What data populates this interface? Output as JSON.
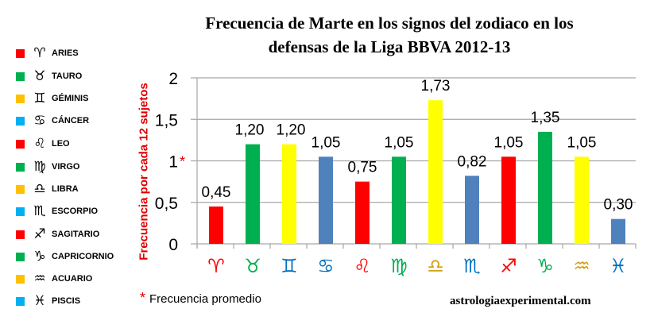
{
  "title_line1": "Frecuencia de Marte en los signos del zodiaco en los",
  "title_line2": "defensas de la Liga BBVA 2012-13",
  "ylabel": "Frecuencia por cada 12 sujetos",
  "footnote_star": "*",
  "footnote": "Frecuencia promedio",
  "source": "astrologiaexperimental.com",
  "legend": [
    {
      "glyph": "♈",
      "label": "ARIES",
      "color": "#ff0000"
    },
    {
      "glyph": "♉",
      "label": "TAURO",
      "color": "#00b050"
    },
    {
      "glyph": "♊",
      "label": "GÉMINIS",
      "color": "#ffc000"
    },
    {
      "glyph": "♋",
      "label": "CÁNCER",
      "color": "#00b0f0"
    },
    {
      "glyph": "♌",
      "label": "LEO",
      "color": "#ff0000"
    },
    {
      "glyph": "♍",
      "label": "VIRGO",
      "color": "#00b050"
    },
    {
      "glyph": "♎",
      "label": "LIBRA",
      "color": "#ffc000"
    },
    {
      "glyph": "♏",
      "label": "ESCORPIO",
      "color": "#00b0f0"
    },
    {
      "glyph": "♐",
      "label": "SAGITARIO",
      "color": "#ff0000"
    },
    {
      "glyph": "♑",
      "label": "CAPRICORNIO",
      "color": "#00b050"
    },
    {
      "glyph": "♒",
      "label": "ACUARIO",
      "color": "#ffc000"
    },
    {
      "glyph": "♓",
      "label": "PISCIS",
      "color": "#00b0f0"
    }
  ],
  "chart_data": {
    "type": "bar",
    "title": "Frecuencia de Marte en los signos del zodiaco en los defensas de la Liga BBVA 2012-13",
    "xlabel": "",
    "ylabel": "Frecuencia por cada 12 sujetos",
    "categories": [
      "Aries",
      "Tauro",
      "Géminis",
      "Cáncer",
      "Leo",
      "Virgo",
      "Libra",
      "Escorpio",
      "Sagitario",
      "Capricornio",
      "Acuario",
      "Piscis"
    ],
    "category_glyphs": [
      "♈",
      "♉",
      "♊",
      "♋",
      "♌",
      "♍",
      "♎",
      "♏",
      "♐",
      "♑",
      "♒",
      "♓"
    ],
    "glyph_colors": [
      "#ff0000",
      "#00b050",
      "#0070c0",
      "#0070c0",
      "#ff0000",
      "#00b050",
      "#d4a017",
      "#0070c0",
      "#ff0000",
      "#00b050",
      "#d4a017",
      "#0070c0"
    ],
    "values": [
      0.45,
      1.2,
      1.2,
      1.05,
      0.75,
      1.05,
      1.73,
      0.82,
      1.05,
      1.35,
      1.05,
      0.3
    ],
    "value_labels": [
      "0,45",
      "1,20",
      "1,20",
      "1,05",
      "0,75",
      "1,05",
      "1,73",
      "0,82",
      "1,05",
      "1,35",
      "1,05",
      "0,30"
    ],
    "bar_colors": [
      "#ff0000",
      "#00b050",
      "#ffff00",
      "#4f81bd",
      "#ff0000",
      "#00b050",
      "#ffff00",
      "#4f81bd",
      "#ff0000",
      "#00b050",
      "#ffff00",
      "#4f81bd"
    ],
    "yticks": [
      "0",
      "0,5",
      "1",
      "1,5",
      "2"
    ],
    "ytick_values": [
      0,
      0.5,
      1,
      1.5,
      2
    ],
    "ylim": [
      0,
      2
    ],
    "grid": true,
    "average_marker": {
      "value": 1,
      "symbol": "*",
      "color": "#e00000"
    },
    "legend_position": "left"
  }
}
